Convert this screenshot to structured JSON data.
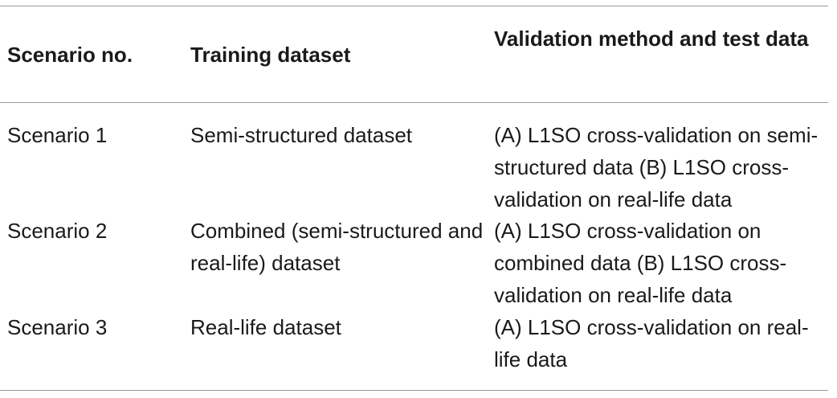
{
  "table": {
    "headers": {
      "scenario": "Scenario no.",
      "training": "Training dataset",
      "validation": "Validation method and test data"
    },
    "rows": [
      {
        "scenario": "Scenario 1",
        "training": "Semi-structured dataset",
        "validation": "(A) L1SO cross-validation on semi-structured data (B) L1SO cross-validation on real-life data"
      },
      {
        "scenario": "Scenario 2",
        "training": "Combined (semi-structured and real-life) dataset",
        "validation": "(A) L1SO cross-validation on combined data (B) L1SO cross-validation on real-life data"
      },
      {
        "scenario": "Scenario 3",
        "training": "Real-life dataset",
        "validation": "(A) L1SO cross-validation on real-life data"
      }
    ]
  }
}
